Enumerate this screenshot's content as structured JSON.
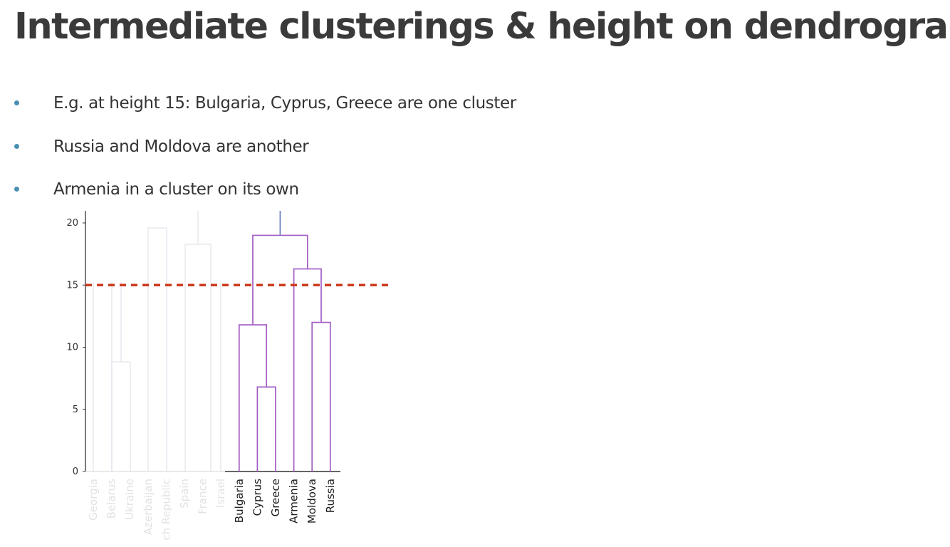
{
  "slide": {
    "title": "Intermediate clusterings & height on dendrogram",
    "bullets": [
      "E.g. at height 15: Bulgaria, Cyprus, Greece are one cluster",
      "Russia and Moldova are another",
      "Armenia in a cluster on its own"
    ]
  },
  "colors": {
    "bullet": "#4a8fb3",
    "cluster_link": "#a25cc4",
    "root_link": "#6b7fc0",
    "faded_link": "#ebe7ee",
    "faded_label": "#e2e2e2",
    "cut_line": "#cc3a1e",
    "axis": "#333333"
  },
  "chart_data": {
    "type": "dendrogram",
    "y_ticks": [
      0,
      5,
      10,
      15,
      20
    ],
    "ylim": [
      0,
      21
    ],
    "cut_height": 15,
    "leaves": [
      {
        "label": "Georgia",
        "faded": true
      },
      {
        "label": "Belarus",
        "faded": true
      },
      {
        "label": "Ukraine",
        "faded": true
      },
      {
        "label": "Azerbaijan",
        "faded": true
      },
      {
        "label": "ch Republic",
        "faded": true
      },
      {
        "label": "Spain",
        "faded": true
      },
      {
        "label": "France",
        "faded": true
      },
      {
        "label": "Israel",
        "faded": true
      },
      {
        "label": "Bulgaria",
        "faded": false
      },
      {
        "label": "Cyprus",
        "faded": false
      },
      {
        "label": "Greece",
        "faded": false
      },
      {
        "label": "Armenia",
        "faded": false
      },
      {
        "label": "Moldova",
        "faded": false
      },
      {
        "label": "Russia",
        "faded": false
      }
    ],
    "merges": [
      {
        "left": "Cyprus",
        "right": "Greece",
        "height": 6.8
      },
      {
        "left": "Bulgaria",
        "right": "Cyprus+Greece",
        "height": 11.8
      },
      {
        "left": "Moldova",
        "right": "Russia",
        "height": 12
      },
      {
        "left": "Armenia",
        "right": "Moldova+Russia",
        "height": 16.3
      },
      {
        "left": "Bulgaria+Cyprus+Greece",
        "right": "Armenia+Moldova+Russia",
        "height": 19
      }
    ]
  }
}
